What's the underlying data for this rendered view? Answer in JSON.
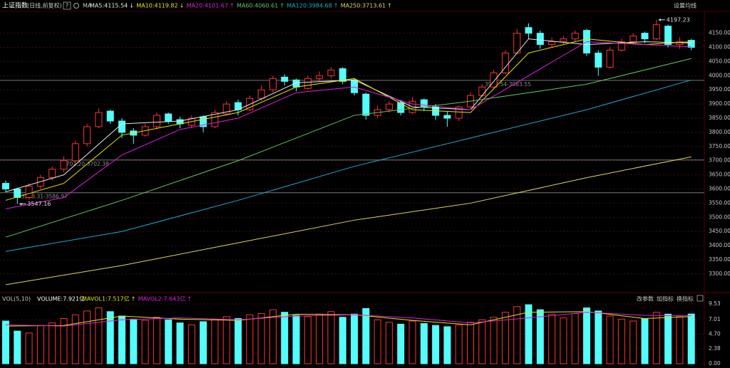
{
  "chart_data": [
    {
      "type": "candlestick",
      "title": "上证指数",
      "subtitle": "(日线,前复权)",
      "help": "?",
      "ma_label": "MA",
      "settings": "设置均线",
      "up_color": "#ff3232",
      "down_color": "#54fcfc",
      "open": [
        3620,
        3600,
        3570,
        3610,
        3640,
        3670,
        3700,
        3760,
        3820,
        3875,
        3840,
        3805,
        3790,
        3820,
        3865,
        3845,
        3825,
        3855,
        3820,
        3865,
        3905,
        3880,
        3920,
        3950,
        3995,
        3985,
        3955,
        3990,
        4000,
        4025,
        3985,
        3935,
        3860,
        3880,
        3905,
        3870,
        3915,
        3890,
        3860,
        3850,
        3890,
        3930,
        3960,
        4010,
        4080,
        4170,
        4150,
        4110,
        4120,
        4130,
        4160,
        4080,
        4030,
        4090,
        4120,
        4150,
        4130,
        4175,
        4110,
        4125
      ],
      "high": [
        3630,
        3605,
        3620,
        3650,
        3680,
        3715,
        3770,
        3830,
        3885,
        3880,
        3850,
        3815,
        3830,
        3870,
        3870,
        3855,
        3860,
        3860,
        3880,
        3910,
        3915,
        3930,
        3965,
        4000,
        4005,
        3990,
        4000,
        4015,
        4030,
        4030,
        3990,
        3940,
        3895,
        3910,
        3915,
        3925,
        3920,
        3900,
        3875,
        3895,
        3940,
        3970,
        4020,
        4090,
        4165,
        4185,
        4160,
        4135,
        4140,
        4160,
        4165,
        4090,
        4100,
        4130,
        4150,
        4155,
        4197.23,
        4180,
        4135,
        4130
      ],
      "low": [
        3590,
        3547.16,
        3565,
        3600,
        3630,
        3660,
        3695,
        3750,
        3815,
        3830,
        3780,
        3760,
        3785,
        3810,
        3830,
        3815,
        3815,
        3800,
        3815,
        3860,
        3860,
        3875,
        3910,
        3940,
        3965,
        3945,
        3950,
        3980,
        3990,
        3970,
        3930,
        3845,
        3850,
        3870,
        3860,
        3865,
        3875,
        3845,
        3820,
        3840,
        3885,
        3925,
        3955,
        4005,
        4075,
        4130,
        4095,
        4100,
        4110,
        4120,
        4070,
        4000,
        4025,
        4085,
        4110,
        4115,
        4125,
        4100,
        4095,
        4090
      ],
      "close": [
        3600,
        3570,
        3610,
        3640,
        3670,
        3700,
        3760,
        3820,
        3870,
        3840,
        3800,
        3790,
        3820,
        3860,
        3840,
        3830,
        3850,
        3820,
        3870,
        3900,
        3880,
        3920,
        3950,
        3990,
        3980,
        3960,
        3990,
        4000,
        4020,
        3980,
        3940,
        3860,
        3880,
        3900,
        3870,
        3910,
        3890,
        3860,
        3850,
        3890,
        3930,
        3960,
        4010,
        4080,
        4150,
        4150,
        4110,
        4120,
        4130,
        4150,
        4080,
        4030,
        4090,
        4120,
        4140,
        4130,
        4180,
        4110,
        4120,
        4100
      ],
      "series": [
        {
          "name": "MA5:4115.54",
          "trend": "↓",
          "color": "#e8e8e8",
          "x": [
            0,
            5,
            10,
            15,
            20,
            25,
            30,
            35,
            40,
            45,
            50,
            55,
            59
          ],
          "values": [
            3590,
            3650,
            3830,
            3840,
            3880,
            3975,
            3985,
            3890,
            3880,
            4130,
            4110,
            4120,
            4115.54
          ]
        },
        {
          "name": "MA10:4119.82",
          "trend": "↓",
          "color": "#e6e600",
          "x": [
            0,
            5,
            10,
            15,
            20,
            25,
            30,
            35,
            40,
            45,
            50,
            55,
            59
          ],
          "values": [
            3560,
            3620,
            3790,
            3830,
            3870,
            3960,
            3990,
            3880,
            3870,
            4080,
            4130,
            4110,
            4119.82
          ]
        },
        {
          "name": "MA20:4101.67",
          "trend": "↑",
          "color": "#e020e0",
          "x": [
            0,
            5,
            10,
            15,
            20,
            25,
            30,
            35,
            40,
            45,
            50,
            55,
            59
          ],
          "values": [
            3530,
            3570,
            3720,
            3810,
            3850,
            3940,
            3960,
            3900,
            3880,
            4000,
            4120,
            4110,
            4101.67
          ]
        },
        {
          "name": "MA60:4060.61",
          "trend": "↑",
          "color": "#60c860",
          "x": [
            0,
            10,
            20,
            30,
            40,
            50,
            59
          ],
          "values": [
            3430,
            3560,
            3700,
            3860,
            3910,
            3970,
            4060.61
          ]
        },
        {
          "name": "MA120:3984.68",
          "trend": "↑",
          "color": "#20a8d0",
          "x": [
            0,
            10,
            20,
            30,
            40,
            50,
            59
          ],
          "values": [
            3380,
            3450,
            3560,
            3680,
            3780,
            3880,
            3984.68
          ]
        },
        {
          "name": "MA250:3713.61",
          "trend": "↑",
          "color": "#d8d860",
          "x": [
            0,
            10,
            20,
            30,
            40,
            50,
            59
          ],
          "values": [
            3262,
            3330,
            3410,
            3490,
            3550,
            3640,
            3713.61
          ]
        }
      ],
      "levels": [
        {
          "value": 3983.55,
          "label": "3977.54-3983.55"
        },
        {
          "value": 3702.38,
          "label": "3702.20-3702.38"
        },
        {
          "value": 3586.97,
          "label": "3593.31-3586.97"
        }
      ],
      "ylim": [
        3237,
        4222
      ],
      "yticks": [
        {
          "value": 3300,
          "label": "3300.00"
        },
        {
          "value": 3350,
          "label": "3350.00"
        },
        {
          "value": 3400,
          "label": "3400.00"
        },
        {
          "value": 3450,
          "label": "3450.00"
        },
        {
          "value": 3500,
          "label": "3500.00"
        },
        {
          "value": 3550,
          "label": "3550.00"
        },
        {
          "value": 3600,
          "label": "3600.00"
        },
        {
          "value": 3650,
          "label": "3650.00"
        },
        {
          "value": 3700,
          "label": "3700.00"
        },
        {
          "value": 3750,
          "label": "3750.00"
        },
        {
          "value": 3800,
          "label": "3800.00"
        },
        {
          "value": 3850,
          "label": "3850.00"
        },
        {
          "value": 3900,
          "label": "3900.00"
        },
        {
          "value": 3950,
          "label": "3950.00"
        },
        {
          "value": 4000,
          "label": "4000.00"
        },
        {
          "value": 4050,
          "label": "4050.00"
        },
        {
          "value": 4100,
          "label": "4100.00"
        },
        {
          "value": 4150,
          "label": "4150.00"
        }
      ],
      "grid": true
    },
    {
      "type": "bar",
      "title": "VOL(5,10)",
      "buttons": [
        "改参数",
        "加指标",
        "换指标"
      ],
      "values": [
        6.8,
        5.2,
        4.9,
        6.1,
        6.5,
        7.2,
        7.8,
        8.4,
        8.9,
        8.3,
        7.6,
        7.1,
        6.9,
        7.4,
        7.0,
        6.5,
        6.2,
        6.7,
        7.1,
        7.5,
        7.2,
        7.8,
        8.0,
        8.6,
        8.2,
        7.7,
        7.5,
        7.9,
        8.3,
        7.4,
        7.9,
        8.8,
        7.0,
        6.6,
        6.3,
        6.8,
        6.4,
        6.1,
        5.9,
        6.2,
        6.6,
        7.0,
        7.4,
        8.2,
        9.1,
        9.4,
        8.6,
        7.9,
        7.3,
        8.0,
        8.9,
        8.4,
        7.6,
        7.1,
        6.8,
        7.2,
        8.2,
        7.9,
        7.5,
        7.921
      ],
      "legend": "VOLUME:7.921亿",
      "series": [
        {
          "name": "MAVOL1:7.517亿",
          "trend": "↑",
          "color": "#e6e600",
          "x": [
            0,
            5,
            10,
            15,
            20,
            25,
            30,
            35,
            40,
            45,
            50,
            55,
            59
          ],
          "values": [
            6.0,
            6.1,
            7.6,
            7.1,
            6.9,
            7.9,
            7.8,
            6.9,
            6.2,
            8.2,
            8.3,
            7.2,
            7.517
          ]
        },
        {
          "name": "MAVOL2:7.643亿",
          "trend": "↑",
          "color": "#e020e0",
          "x": [
            0,
            5,
            10,
            15,
            20,
            25,
            30,
            35,
            40,
            45,
            50,
            55,
            59
          ],
          "values": [
            6.2,
            6.0,
            7.0,
            7.3,
            7.0,
            7.6,
            7.8,
            7.3,
            6.5,
            7.3,
            8.2,
            7.7,
            7.643
          ]
        }
      ],
      "ylim": [
        0,
        9.75
      ],
      "yticks": [
        9.53,
        7.01,
        {
          "value": 4.7,
          "label": "4.70"
        },
        2.38,
        {
          "value": 0,
          "label": "0.00"
        }
      ],
      "grid": true
    }
  ]
}
